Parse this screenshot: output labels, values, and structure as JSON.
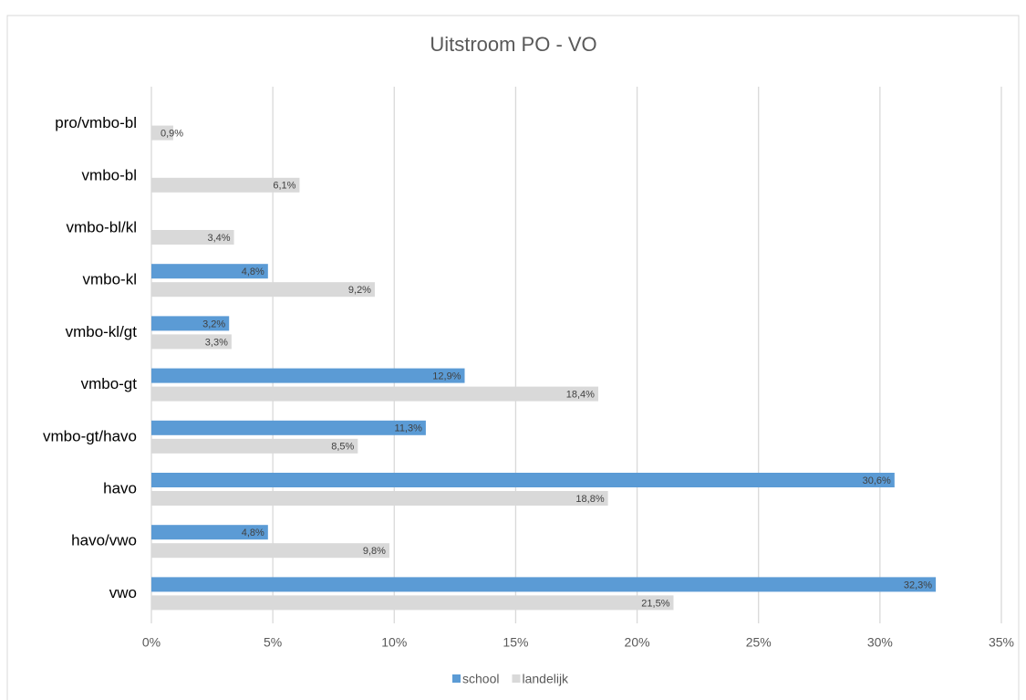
{
  "chart_data": {
    "type": "bar",
    "orientation": "horizontal",
    "title": "Uitstroom PO - VO",
    "categories": [
      "pro/vmbo-bl",
      "vmbo-bl",
      "vmbo-bl/kl",
      "vmbo-kl",
      "vmbo-kl/gt",
      "vmbo-gt",
      "vmbo-gt/havo",
      "havo",
      "havo/vwo",
      "vwo"
    ],
    "series": [
      {
        "name": "school",
        "color": "#5b9bd5",
        "values": [
          null,
          null,
          null,
          4.8,
          3.2,
          12.9,
          11.3,
          30.6,
          4.8,
          32.3
        ],
        "value_labels": [
          null,
          null,
          null,
          "4,8%",
          "3,2%",
          "12,9%",
          "11,3%",
          "30,6%",
          "4,8%",
          "32,3%"
        ]
      },
      {
        "name": "landelijk",
        "color": "#d9d9d9",
        "values": [
          0.9,
          6.1,
          3.4,
          9.2,
          3.3,
          18.4,
          8.5,
          18.8,
          9.8,
          21.5
        ],
        "value_labels": [
          "0,9%",
          "6,1%",
          "3,4%",
          "9,2%",
          "3,3%",
          "18,4%",
          "8,5%",
          "18,8%",
          "9,8%",
          "21,5%"
        ]
      }
    ],
    "xlim": [
      0,
      35
    ],
    "xticks": [
      {
        "value": 0,
        "label": "0%"
      },
      {
        "value": 5,
        "label": "5%"
      },
      {
        "value": 10,
        "label": "10%"
      },
      {
        "value": 15,
        "label": "15%"
      },
      {
        "value": 20,
        "label": "20%"
      },
      {
        "value": 25,
        "label": "25%"
      },
      {
        "value": 30,
        "label": "30%"
      },
      {
        "value": 35,
        "label": "35%"
      }
    ],
    "grid": true,
    "legend": "bottom"
  }
}
